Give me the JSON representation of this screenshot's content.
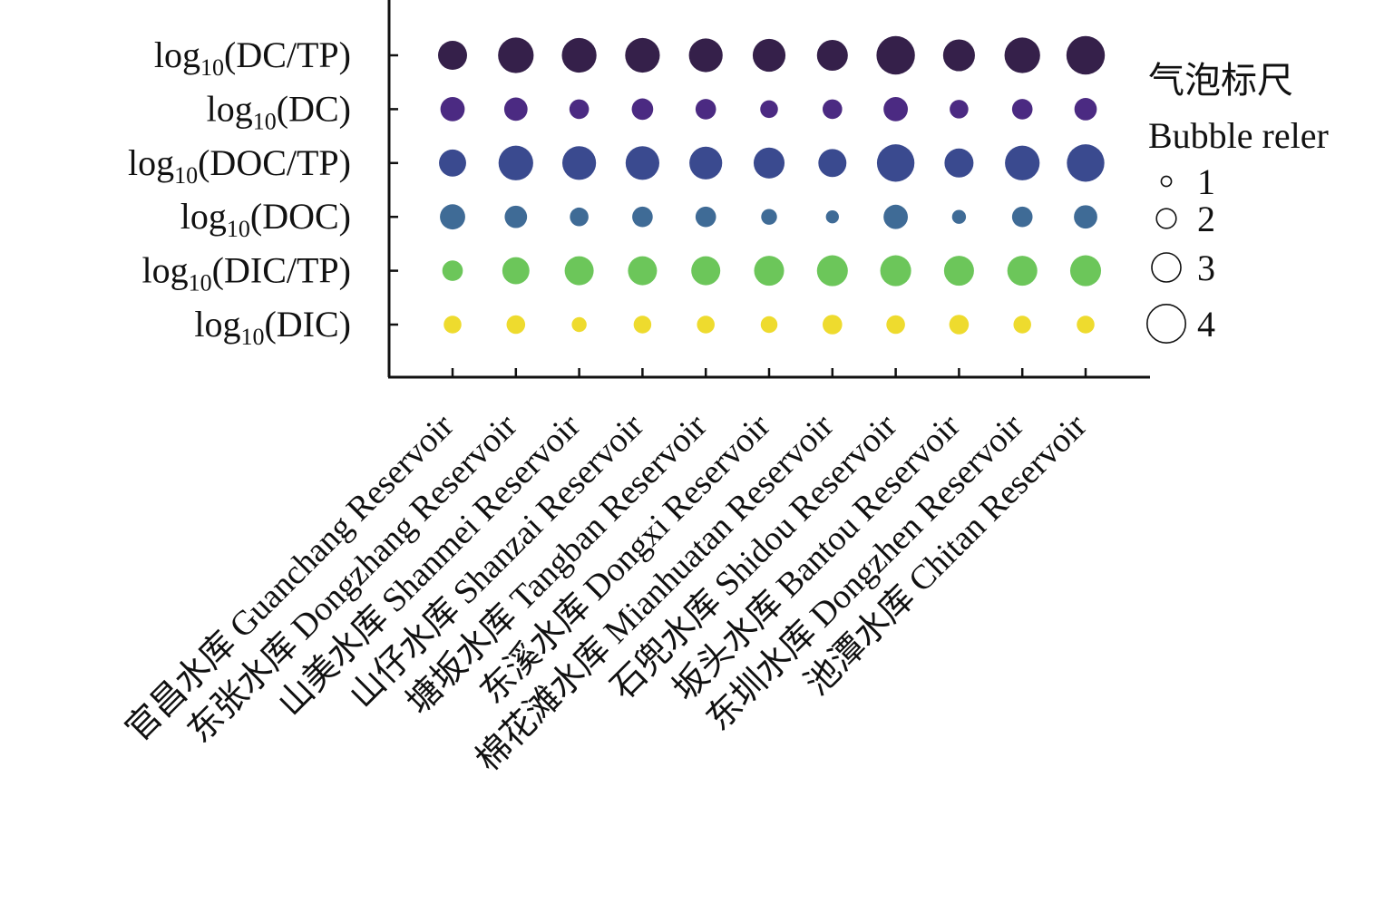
{
  "chart_data": {
    "type": "bubble",
    "y_categories": [
      {
        "base": "log",
        "sub": "10",
        "arg": "(DC/TP)"
      },
      {
        "base": "log",
        "sub": "10",
        "arg": "(DC)"
      },
      {
        "base": "log",
        "sub": "10",
        "arg": "(DOC/TP)"
      },
      {
        "base": "log",
        "sub": "10",
        "arg": "(DOC)"
      },
      {
        "base": "log",
        "sub": "10",
        "arg": "(DIC/TP)"
      },
      {
        "base": "log",
        "sub": "10",
        "arg": "(DIC)"
      }
    ],
    "x_categories": [
      "官昌水库 Guanchang Reservoir",
      "东张水库 Dongzhang Reservoir",
      "山美水库 Shanmei Reservoir",
      "山仔水库 Shanzai Reservoir",
      "塘坂水库 Tangban Reservoir",
      "东溪水库 Dongxi Reservoir",
      "棉花滩水库 Mianhuatan Reservoir",
      "石兜水库 Shidou Reservoir",
      "坂头水库 Bantou Reservoir",
      "东圳水库 Dongzhen Reservoir",
      "池潭水库 Chitan Reservoir"
    ],
    "row_colors": [
      "#35204a",
      "#4b2a82",
      "#3a4a8f",
      "#3f6b96",
      "#6cc65a",
      "#eedb2e"
    ],
    "values": [
      [
        3.0,
        3.7,
        3.6,
        3.6,
        3.5,
        3.4,
        3.2,
        4.0,
        3.3,
        3.7,
        4.0
      ],
      [
        2.5,
        2.4,
        2.0,
        2.2,
        2.1,
        1.8,
        2.0,
        2.5,
        1.9,
        2.1,
        2.3
      ],
      [
        2.8,
        3.6,
        3.5,
        3.5,
        3.4,
        3.2,
        2.9,
        3.9,
        3.0,
        3.6,
        3.9
      ],
      [
        2.6,
        2.3,
        1.9,
        2.1,
        2.1,
        1.6,
        1.3,
        2.5,
        1.4,
        2.1,
        2.4
      ],
      [
        2.1,
        2.8,
        3.0,
        3.0,
        3.0,
        3.1,
        3.2,
        3.2,
        3.1,
        3.1,
        3.2
      ],
      [
        1.8,
        1.9,
        1.5,
        1.8,
        1.8,
        1.7,
        2.0,
        1.9,
        2.0,
        1.8,
        1.8
      ]
    ],
    "legend": {
      "title_cn": "气泡标尺",
      "title_en": "Bubble reler",
      "entries": [
        {
          "label": "1",
          "value": 1
        },
        {
          "label": "2",
          "value": 2
        },
        {
          "label": "3",
          "value": 3
        },
        {
          "label": "4",
          "value": 4
        }
      ],
      "placement": "right"
    },
    "grid": false
  }
}
